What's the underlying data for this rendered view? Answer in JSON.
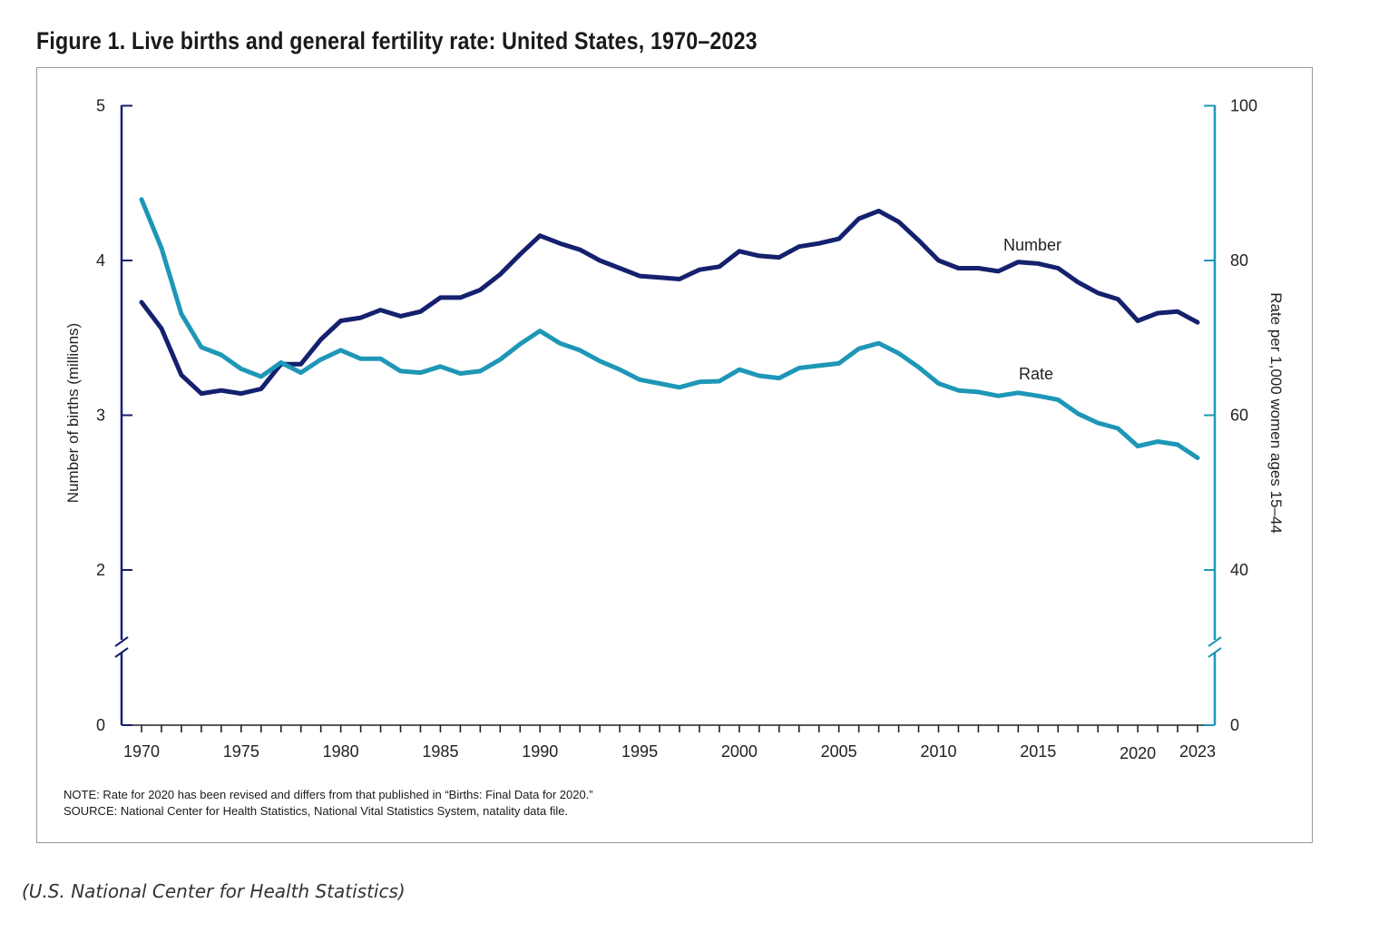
{
  "title": "Figure 1. Live births and general fertility rate: United States, 1970–2023",
  "notes": {
    "note": "NOTE: Rate for 2020 has been revised and differs from that published in “Births: Final Data for 2020.”",
    "source": "SOURCE: National Center for Health Statistics, National Vital Statistics System, natality data file."
  },
  "credit": "(U.S. National Center for Health Statistics)",
  "colors": {
    "number": "#15206e",
    "rate": "#1e97b7",
    "left_axis": "#15206e",
    "right_axis": "#1e97b7"
  },
  "chart_data": {
    "type": "line",
    "title": "Figure 1. Live births and general fertility rate: United States, 1970–2023",
    "xlabel": "",
    "ylabel_left": "Number of births (millions)",
    "ylabel_right": "Rate per 1,000 women ages 15–44",
    "xlim": [
      1970,
      2023
    ],
    "ylim_left": [
      0,
      5
    ],
    "ylim_right": [
      0,
      100
    ],
    "axis_break": true,
    "x_ticks": [
      "1970",
      "1975",
      "1980",
      "1985",
      "1990",
      "1995",
      "2000",
      "2005",
      "2010",
      "2015",
      "2020",
      "2023"
    ],
    "y_ticks_left": [
      "0",
      "2",
      "3",
      "4",
      "5"
    ],
    "y_ticks_right": [
      "0",
      "40",
      "60",
      "80",
      "100"
    ],
    "x": [
      1970,
      1971,
      1972,
      1973,
      1974,
      1975,
      1976,
      1977,
      1978,
      1979,
      1980,
      1981,
      1982,
      1983,
      1984,
      1985,
      1986,
      1987,
      1988,
      1989,
      1990,
      1991,
      1992,
      1993,
      1994,
      1995,
      1996,
      1997,
      1998,
      1999,
      2000,
      2001,
      2002,
      2003,
      2004,
      2005,
      2006,
      2007,
      2008,
      2009,
      2010,
      2011,
      2012,
      2013,
      2014,
      2015,
      2016,
      2017,
      2018,
      2019,
      2020,
      2021,
      2022,
      2023
    ],
    "series": [
      {
        "name": "Number",
        "axis": "left",
        "values": [
          3.73,
          3.56,
          3.26,
          3.14,
          3.16,
          3.14,
          3.17,
          3.33,
          3.33,
          3.49,
          3.61,
          3.63,
          3.68,
          3.64,
          3.67,
          3.76,
          3.76,
          3.81,
          3.91,
          4.04,
          4.16,
          4.11,
          4.07,
          4.0,
          3.95,
          3.9,
          3.89,
          3.88,
          3.94,
          3.96,
          4.06,
          4.03,
          4.02,
          4.09,
          4.11,
          4.14,
          4.27,
          4.32,
          4.25,
          4.13,
          4.0,
          3.95,
          3.95,
          3.93,
          3.99,
          3.98,
          3.95,
          3.86,
          3.79,
          3.75,
          3.61,
          3.66,
          3.67,
          3.6
        ]
      },
      {
        "name": "Rate",
        "axis": "right",
        "values": [
          87.9,
          81.6,
          73.1,
          68.8,
          67.8,
          66.0,
          65.0,
          66.8,
          65.5,
          67.2,
          68.4,
          67.3,
          67.3,
          65.7,
          65.5,
          66.3,
          65.4,
          65.7,
          67.2,
          69.2,
          70.9,
          69.3,
          68.4,
          67.0,
          65.9,
          64.6,
          64.1,
          63.6,
          64.3,
          64.4,
          65.9,
          65.1,
          64.8,
          66.1,
          66.4,
          66.7,
          68.6,
          69.3,
          68.0,
          66.2,
          64.1,
          63.2,
          63.0,
          62.5,
          62.9,
          62.5,
          62.0,
          60.2,
          59.0,
          58.3,
          56.0,
          56.6,
          56.2,
          54.5
        ]
      }
    ],
    "legend": "inline labels"
  }
}
